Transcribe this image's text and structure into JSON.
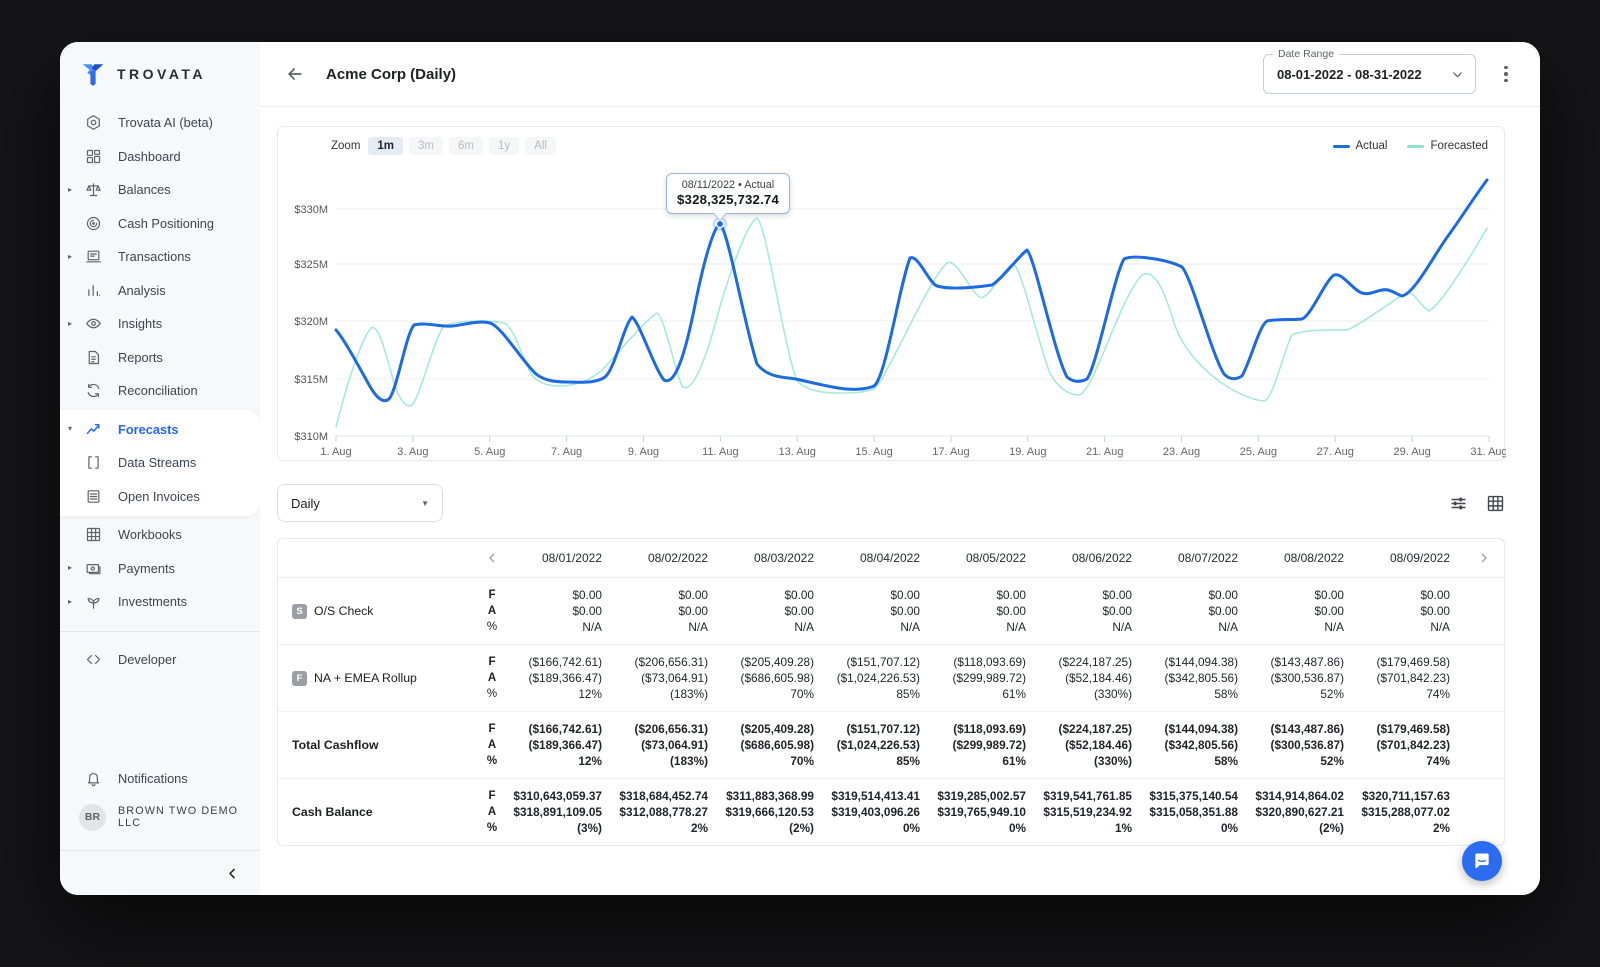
{
  "sidebar": {
    "brand": "TROVATA",
    "items": [
      {
        "label": "Trovata AI (beta)",
        "icon": "hexagon-ai"
      },
      {
        "label": "Dashboard",
        "icon": "dashboard"
      },
      {
        "label": "Balances",
        "icon": "balances",
        "expandable": true
      },
      {
        "label": "Cash Positioning",
        "icon": "cash-positioning"
      },
      {
        "label": "Transactions",
        "icon": "transactions",
        "expandable": true
      },
      {
        "label": "Analysis",
        "icon": "analysis"
      },
      {
        "label": "Insights",
        "icon": "insights",
        "expandable": true
      },
      {
        "label": "Reports",
        "icon": "reports"
      },
      {
        "label": "Reconciliation",
        "icon": "reconciliation"
      },
      {
        "label": "Forecasts",
        "icon": "forecasts",
        "expandable": true,
        "expanded": true,
        "active": true,
        "in_card": true
      },
      {
        "label": "Data Streams",
        "icon": "data-streams",
        "in_card": true
      },
      {
        "label": "Open Invoices",
        "icon": "open-invoices",
        "in_card": true
      },
      {
        "label": "Workbooks",
        "icon": "workbooks"
      },
      {
        "label": "Payments",
        "icon": "payments",
        "expandable": true
      },
      {
        "label": "Investments",
        "icon": "investments",
        "expandable": true
      },
      {
        "divider": true
      },
      {
        "label": "Developer",
        "icon": "developer"
      }
    ],
    "footer": {
      "notifications": "Notifications",
      "avatar_initials": "BR",
      "account": "BROWN TWO DEMO LLC"
    }
  },
  "header": {
    "title": "Acme Corp (Daily)",
    "date_range_label": "Date Range",
    "date_range_value": "08-01-2022 - 08-31-2022"
  },
  "icons": {
    "header": [
      "back-arrow-icon",
      "chevron-down-icon",
      "kebab-menu-icon"
    ],
    "table_toolbar": [
      "filter-sliders-icon",
      "grid-view-icon"
    ],
    "table_nav": [
      "chevron-left-icon",
      "chevron-right-icon"
    ],
    "sidebar_misc": [
      "bell-icon",
      "collapse-chevron-icon"
    ],
    "floating": [
      "chat-bubble-icon"
    ]
  },
  "chart_data": {
    "type": "line",
    "title": "",
    "zoom_label": "Zoom",
    "zoom_options": [
      "1m",
      "3m",
      "6m",
      "1y",
      "All"
    ],
    "zoom_active": "1m",
    "legend_position": "top-right",
    "grid": true,
    "ylabel": "",
    "xlabel": "",
    "y_unit": "USD millions",
    "ylim": [
      310,
      333
    ],
    "y_ticks": [
      "$330M",
      "$325M",
      "$320M",
      "$315M",
      "$310M"
    ],
    "x_ticks": [
      "1. Aug",
      "3. Aug",
      "5. Aug",
      "7. Aug",
      "9. Aug",
      "11. Aug",
      "13. Aug",
      "15. Aug",
      "17. Aug",
      "19. Aug",
      "21. Aug",
      "23. Aug",
      "25. Aug",
      "27. Aug",
      "29. Aug",
      "31. Aug"
    ],
    "x": [
      "08/01/2022",
      "08/02/2022",
      "08/03/2022",
      "08/04/2022",
      "08/05/2022",
      "08/06/2022",
      "08/07/2022",
      "08/08/2022",
      "08/09/2022",
      "08/10/2022",
      "08/11/2022",
      "08/12/2022",
      "08/13/2022",
      "08/14/2022",
      "08/15/2022",
      "08/16/2022",
      "08/17/2022",
      "08/18/2022",
      "08/19/2022",
      "08/20/2022",
      "08/21/2022",
      "08/22/2022",
      "08/23/2022",
      "08/24/2022",
      "08/25/2022",
      "08/26/2022",
      "08/27/2022",
      "08/28/2022",
      "08/29/2022",
      "08/30/2022",
      "08/31/2022"
    ],
    "series": [
      {
        "name": "Actual",
        "color": "#1c6be0",
        "values": [
          319.4,
          313.4,
          319.9,
          319.6,
          319.9,
          316.0,
          315.0,
          315.2,
          320.4,
          314.9,
          328.33,
          316.6,
          314.9,
          314.1,
          313.7,
          325.6,
          323.0,
          323.1,
          326.3,
          314.9,
          324.7,
          325.7,
          325.1,
          315.8,
          320.1,
          320.3,
          324.3,
          322.6,
          322.9,
          327.4,
          332.4
        ]
      },
      {
        "name": "Forecasted",
        "color": "#8ae2cf",
        "values": [
          310.6,
          318.1,
          312.4,
          319.7,
          319.9,
          319.3,
          315.0,
          314.9,
          320.3,
          314.6,
          322.0,
          329.2,
          316.1,
          314.0,
          313.9,
          317.6,
          325.3,
          322.3,
          325.8,
          320.5,
          314.6,
          324.8,
          322.5,
          316.0,
          313.9,
          320.3,
          320.4,
          323.3,
          321.8,
          322.5,
          327.6
        ]
      }
    ],
    "tooltip": {
      "date_line": "08/11/2022 • Actual",
      "value": "$328,325,732.74"
    }
  },
  "table": {
    "period_select": "Daily",
    "sub_labels": [
      "F",
      "A",
      "%"
    ],
    "columns": [
      "08/01/2022",
      "08/02/2022",
      "08/03/2022",
      "08/04/2022",
      "08/05/2022",
      "08/06/2022",
      "08/07/2022",
      "08/08/2022",
      "08/09/2022"
    ],
    "rows": [
      {
        "label": "O/S Check",
        "badge": "S",
        "bold": false,
        "F": [
          "$0.00",
          "$0.00",
          "$0.00",
          "$0.00",
          "$0.00",
          "$0.00",
          "$0.00",
          "$0.00",
          "$0.00"
        ],
        "A": [
          "$0.00",
          "$0.00",
          "$0.00",
          "$0.00",
          "$0.00",
          "$0.00",
          "$0.00",
          "$0.00",
          "$0.00"
        ],
        "pct": [
          "N/A",
          "N/A",
          "N/A",
          "N/A",
          "N/A",
          "N/A",
          "N/A",
          "N/A",
          "N/A"
        ]
      },
      {
        "label": "NA + EMEA Rollup",
        "badge": "F",
        "bold": false,
        "F": [
          "($166,742.61)",
          "($206,656.31)",
          "($205,409.28)",
          "($151,707.12)",
          "($118,093.69)",
          "($224,187.25)",
          "($144,094.38)",
          "($143,487.86)",
          "($179,469.58)"
        ],
        "A": [
          "($189,366.47)",
          "($73,064.91)",
          "($686,605.98)",
          "($1,024,226.53)",
          "($299,989.72)",
          "($52,184.46)",
          "($342,805.56)",
          "($300,536.87)",
          "($701,842.23)"
        ],
        "pct": [
          "12%",
          "(183%)",
          "70%",
          "85%",
          "61%",
          "(330%)",
          "58%",
          "52%",
          "74%"
        ]
      },
      {
        "label": "Total Cashflow",
        "badge": null,
        "bold": true,
        "F": [
          "($166,742.61)",
          "($206,656.31)",
          "($205,409.28)",
          "($151,707.12)",
          "($118,093.69)",
          "($224,187.25)",
          "($144,094.38)",
          "($143,487.86)",
          "($179,469.58)"
        ],
        "A": [
          "($189,366.47)",
          "($73,064.91)",
          "($686,605.98)",
          "($1,024,226.53)",
          "($299,989.72)",
          "($52,184.46)",
          "($342,805.56)",
          "($300,536.87)",
          "($701,842.23)"
        ],
        "pct": [
          "12%",
          "(183%)",
          "70%",
          "85%",
          "61%",
          "(330%)",
          "58%",
          "52%",
          "74%"
        ]
      },
      {
        "label": "Cash Balance",
        "badge": null,
        "bold": true,
        "F": [
          "$310,643,059.37",
          "$318,684,452.74",
          "$311,883,368.99",
          "$319,514,413.41",
          "$319,285,002.57",
          "$319,541,761.85",
          "$315,375,140.54",
          "$314,914,864.02",
          "$320,711,157.63"
        ],
        "A": [
          "$318,891,109.05",
          "$312,088,778.27",
          "$319,666,120.53",
          "$319,403,096.26",
          "$319,765,949.10",
          "$315,519,234.92",
          "$315,058,351.88",
          "$320,890,627.21",
          "$315,288,077.02"
        ],
        "pct": [
          "(3%)",
          "2%",
          "(2%)",
          "0%",
          "0%",
          "1%",
          "0%",
          "(2%)",
          "2%"
        ]
      }
    ]
  },
  "colors": {
    "actual": "#1c6be0",
    "forecasted": "#8ae2cf",
    "accent": "#2b6cf0",
    "sidebar_bg": "#f7f8f9"
  }
}
